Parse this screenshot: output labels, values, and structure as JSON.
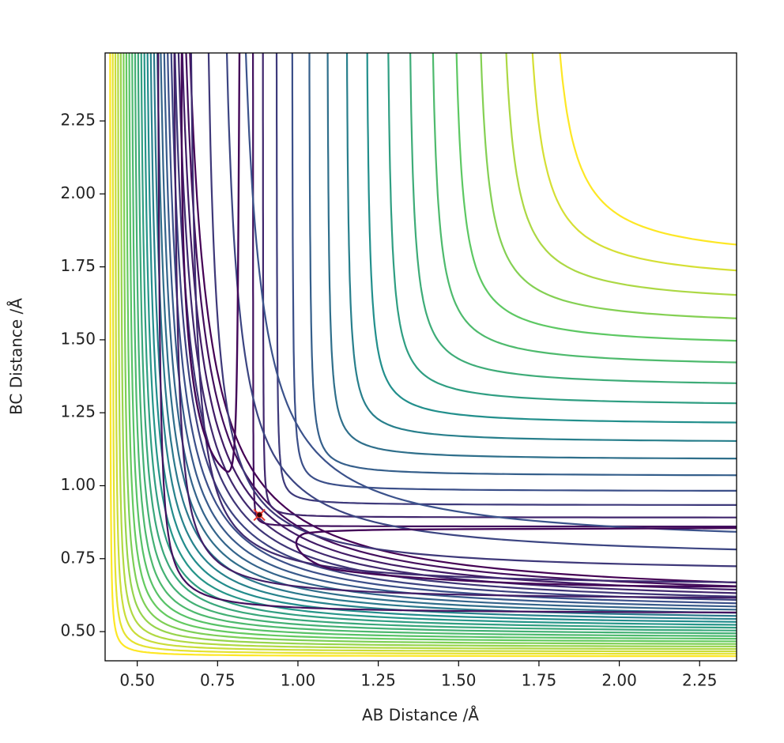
{
  "chart_data": {
    "type": "contour",
    "xlabel": "AB Distance /Å",
    "ylabel": "BC Distance /Å",
    "xlim": [
      0.4,
      2.365
    ],
    "ylim": [
      0.4,
      2.483
    ],
    "xticks": [
      {
        "value": 0.5,
        "label": "0.50"
      },
      {
        "value": 0.75,
        "label": "0.75"
      },
      {
        "value": 1.0,
        "label": "1.00"
      },
      {
        "value": 1.25,
        "label": "1.25"
      },
      {
        "value": 1.5,
        "label": "1.50"
      },
      {
        "value": 1.75,
        "label": "1.75"
      },
      {
        "value": 2.0,
        "label": "2.00"
      },
      {
        "value": 2.25,
        "label": "2.25"
      }
    ],
    "yticks": [
      {
        "value": 0.5,
        "label": "0.50"
      },
      {
        "value": 0.75,
        "label": "0.75"
      },
      {
        "value": 1.0,
        "label": "1.00"
      },
      {
        "value": 1.25,
        "label": "1.25"
      },
      {
        "value": 1.5,
        "label": "1.50"
      },
      {
        "value": 1.75,
        "label": "1.75"
      },
      {
        "value": 2.0,
        "label": "2.00"
      },
      {
        "value": 2.25,
        "label": "2.25"
      }
    ],
    "marker": {
      "x": 0.88,
      "y": 0.9,
      "color": "#e8372c"
    }
  }
}
